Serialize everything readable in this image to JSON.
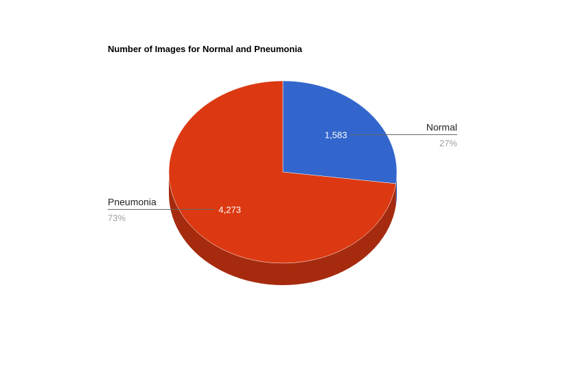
{
  "chart_data": {
    "type": "pie",
    "title": "Number of Images for Normal and Pneumonia",
    "three_d": true,
    "start_angle_deg": 0,
    "slices": [
      {
        "name": "Normal",
        "value": 1583,
        "value_label": "1,583",
        "percent_label": "27%",
        "color": "#3366cc",
        "side_color": "#2a53a8"
      },
      {
        "name": "Pneumonia",
        "value": 4273,
        "value_label": "4,273",
        "percent_label": "73%",
        "color": "#dc3912",
        "side_color": "#a62b0e"
      }
    ],
    "legend": "labeled"
  }
}
